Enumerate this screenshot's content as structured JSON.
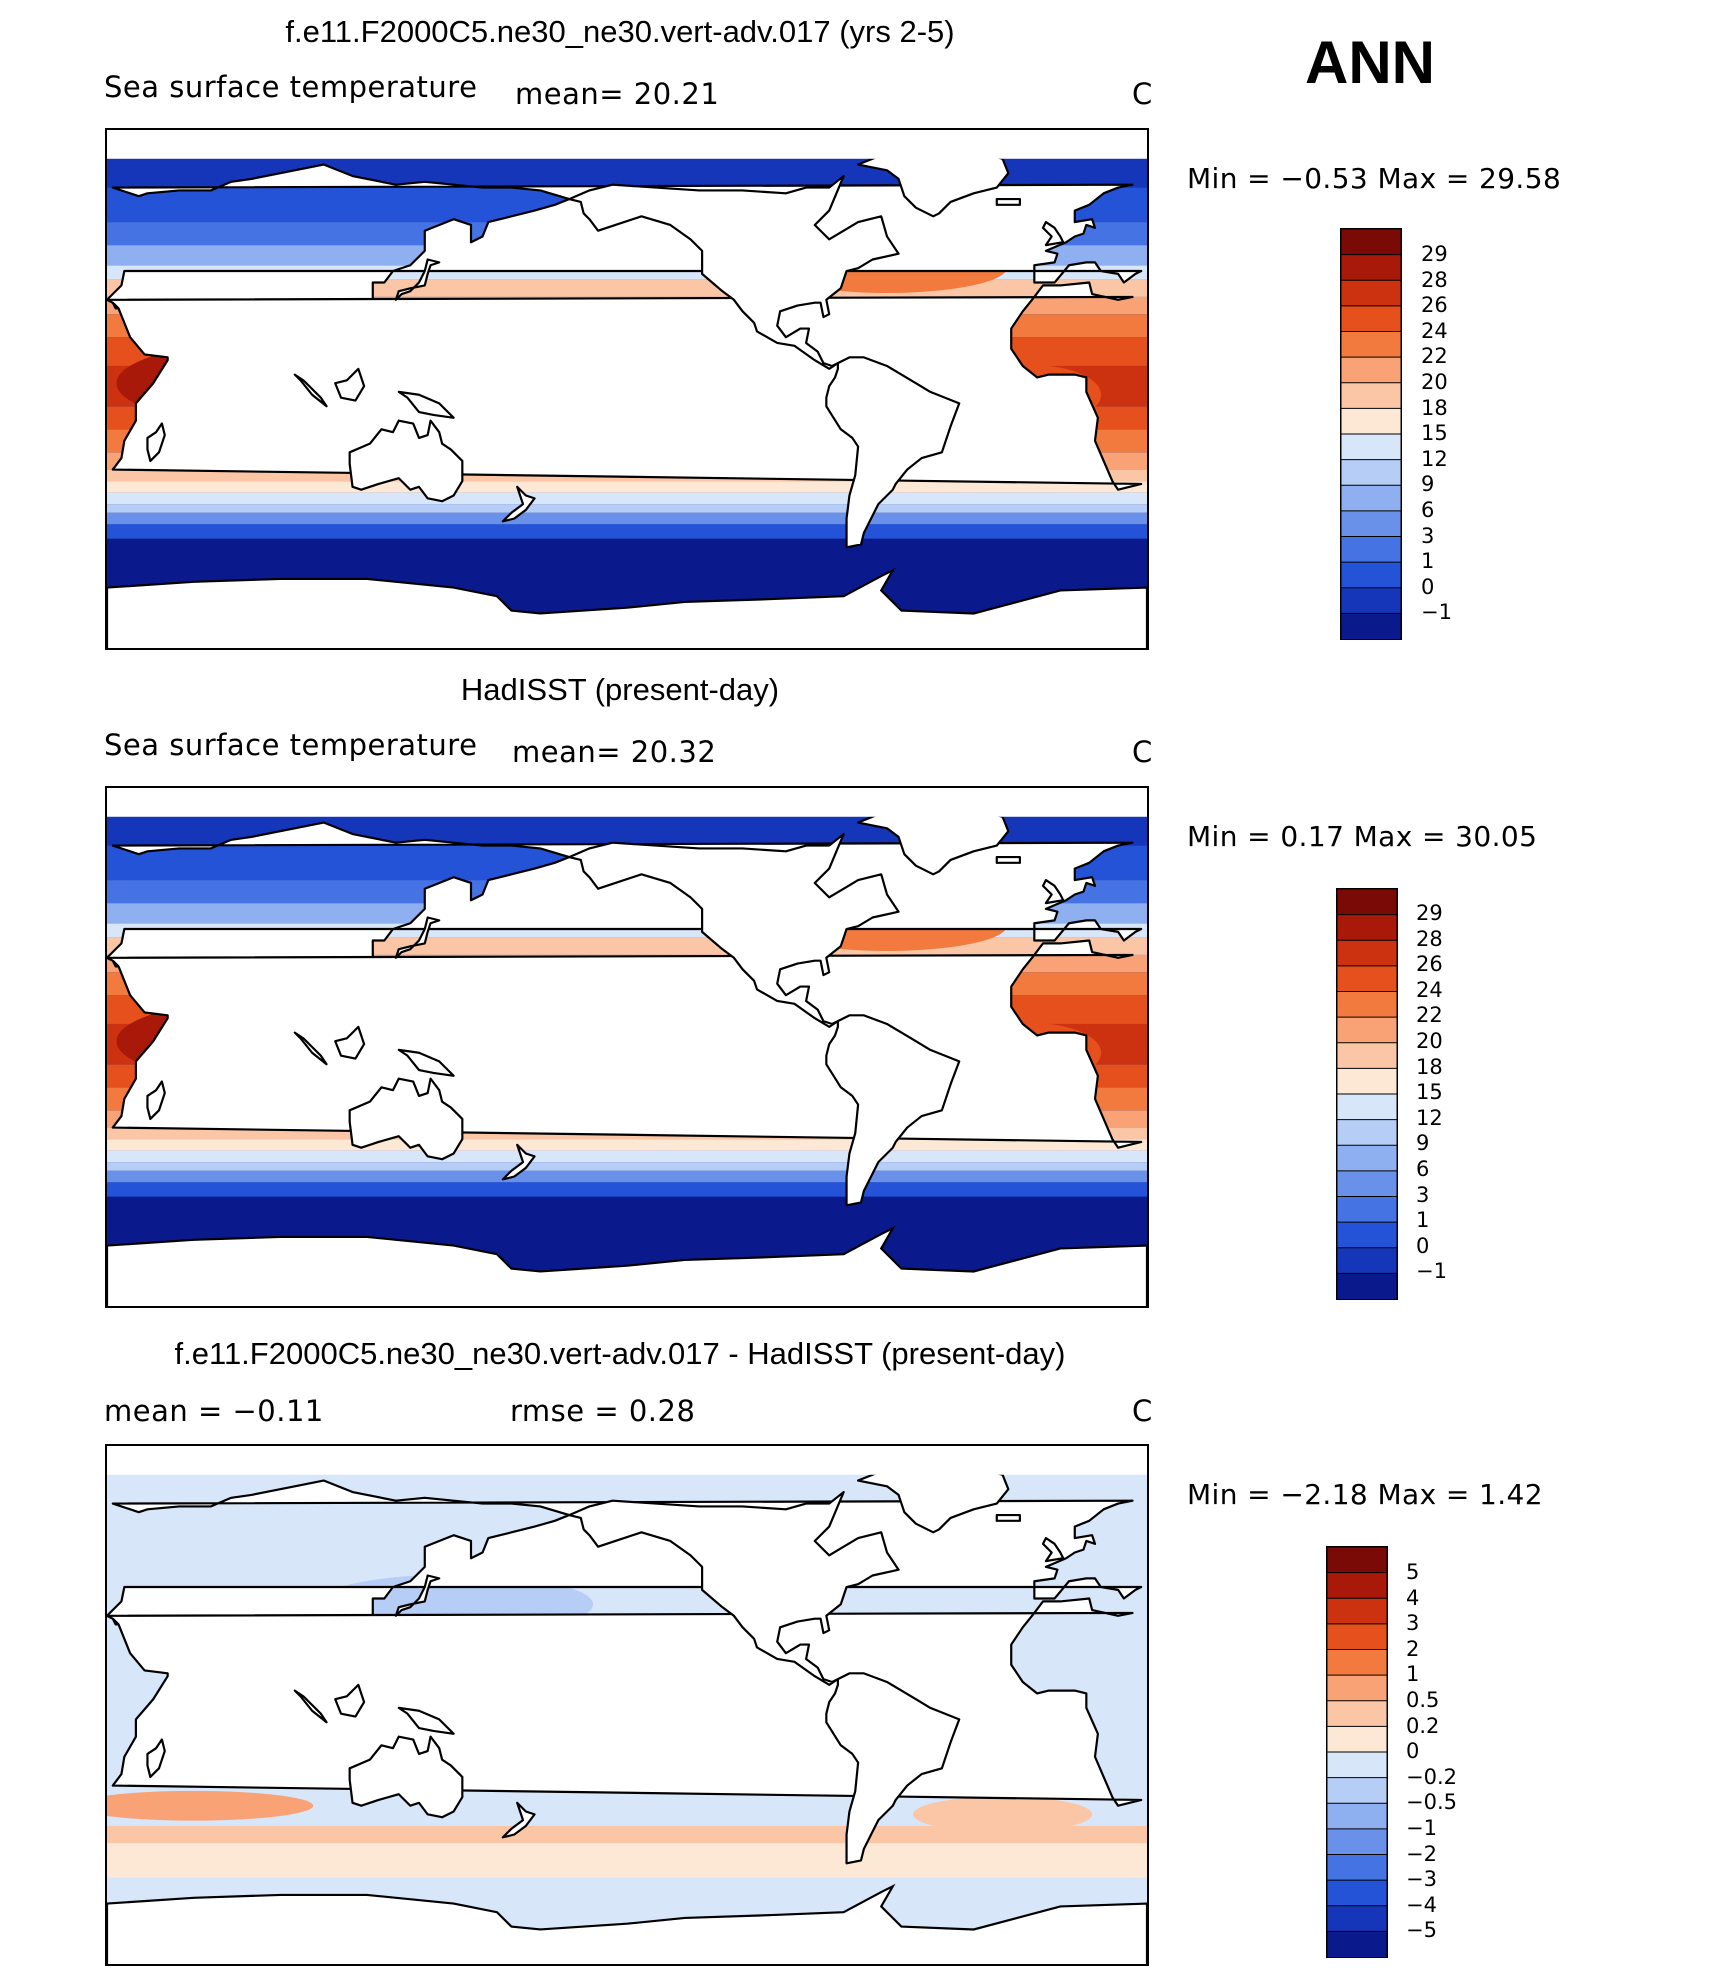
{
  "header": {
    "season": "ANN"
  },
  "panels": [
    {
      "title": "f.e11.F2000C5.ne30_ne30.vert-adv.017 (yrs 2-5)",
      "left_label": "Sea surface temperature",
      "stat1": "mean=   20.21",
      "stat2": "",
      "units": "C",
      "minmax": "Min =   −0.53 Max =   29.58",
      "colorbar_labels": [
        "29",
        "28",
        "26",
        "24",
        "22",
        "20",
        "18",
        "15",
        "12",
        "9",
        "6",
        "3",
        "1",
        "0",
        "−1"
      ]
    },
    {
      "title": "HadISST (present-day)",
      "left_label": "Sea surface temperature",
      "stat1": "mean=   20.32",
      "stat2": "",
      "units": "C",
      "minmax": "Min =    0.17 Max =   30.05",
      "colorbar_labels": [
        "29",
        "28",
        "26",
        "24",
        "22",
        "20",
        "18",
        "15",
        "12",
        "9",
        "6",
        "3",
        "1",
        "0",
        "−1"
      ]
    },
    {
      "title": "f.e11.F2000C5.ne30_ne30.vert-adv.017 - HadISST (present-day)",
      "left_label": "mean =   −0.11",
      "stat1": "rmse =    0.28",
      "stat2": "",
      "units": "C",
      "minmax": "Min =   −2.18 Max =    1.42",
      "colorbar_labels": [
        "5",
        "4",
        "3",
        "2",
        "1",
        "0.5",
        "0.2",
        "0",
        "−0.2",
        "−0.5",
        "−1",
        "−2",
        "−3",
        "−4",
        "−5"
      ]
    }
  ],
  "colors": {
    "sst_scale": [
      "#7a0a06",
      "#a8190a",
      "#cc3210",
      "#e5501c",
      "#f27a3e",
      "#f9a276",
      "#fbc6a5",
      "#fde8d6",
      "#d8e6fa",
      "#b6cdf6",
      "#8fb0f0",
      "#6a91ea",
      "#4673e4",
      "#2453d8",
      "#1536b8",
      "#0a1a8c"
    ],
    "diff_scale": [
      "#7a0a06",
      "#a8190a",
      "#cc3210",
      "#e5501c",
      "#f27a3e",
      "#f9a276",
      "#fbc6a5",
      "#fde8d6",
      "#d8e6fa",
      "#b6cdf6",
      "#8fb0f0",
      "#6a91ea",
      "#4673e4",
      "#2453d8",
      "#1536b8",
      "#0a1a8c"
    ]
  }
}
